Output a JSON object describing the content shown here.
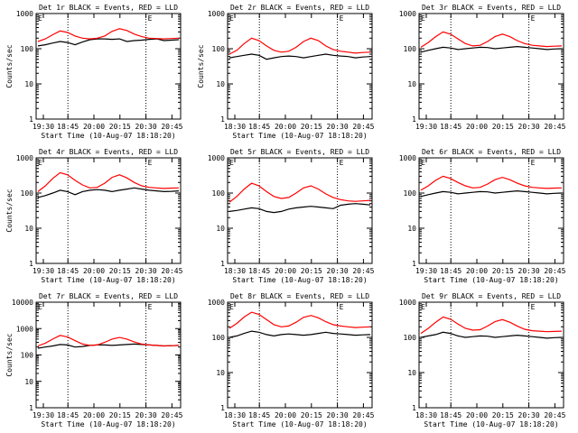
{
  "chart_data": [
    {
      "type": "line",
      "title": "Det 1r BLACK = Events, RED = LLD",
      "xlabel": "Start Time (10-Aug-07 18:18:20)",
      "ylabel": "Counts/sec",
      "yscale": "log",
      "ylim": [
        1,
        1000
      ],
      "x_ticks": [
        "19:30",
        "18:45",
        "20:00",
        "20:15",
        "20:30",
        "20:45"
      ],
      "y_ticks": [
        "1",
        "10",
        "100",
        "1000"
      ],
      "marker_label": "E",
      "series": [
        {
          "name": "Events",
          "color": "#000000",
          "values": [
            120,
            130,
            145,
            160,
            150,
            130,
            155,
            180,
            190,
            190,
            185,
            190,
            160,
            170,
            175,
            185,
            190,
            170,
            175,
            180
          ]
        },
        {
          "name": "LLD",
          "color": "#ff0000",
          "values": [
            160,
            190,
            250,
            320,
            290,
            230,
            200,
            190,
            200,
            230,
            310,
            370,
            330,
            260,
            220,
            200,
            195,
            190,
            195,
            200
          ]
        }
      ]
    },
    {
      "type": "line",
      "title": "Det 2r BLACK = Events, RED = LLD",
      "xlabel": "Start Time (10-Aug-07 18:18:20)",
      "ylabel": "Counts/sec",
      "yscale": "log",
      "ylim": [
        1,
        1000
      ],
      "x_ticks": [
        "18:30",
        "18:45",
        "20:00",
        "20:15",
        "20:30",
        "20:45"
      ],
      "y_ticks": [
        "1",
        "10",
        "100",
        "1000"
      ],
      "marker_label": "E",
      "series": [
        {
          "name": "Events",
          "color": "#000000",
          "values": [
            55,
            60,
            65,
            70,
            65,
            50,
            55,
            60,
            62,
            60,
            55,
            60,
            65,
            70,
            65,
            62,
            60,
            55,
            58,
            60
          ]
        },
        {
          "name": "LLD",
          "color": "#ff0000",
          "values": [
            70,
            90,
            140,
            200,
            170,
            120,
            90,
            80,
            85,
            110,
            160,
            200,
            170,
            120,
            95,
            85,
            80,
            75,
            78,
            80
          ]
        }
      ]
    },
    {
      "type": "line",
      "title": "Det 3r BLACK = Events, RED = LLD",
      "xlabel": "",
      "ylabel": "",
      "yscale": "log",
      "ylim": [
        1,
        1000
      ],
      "x_ticks": [
        "19:30",
        "18:45",
        "20:00",
        "20:15",
        "20:30",
        "20:45"
      ],
      "y_ticks": [
        "1",
        "10",
        "100",
        "1000"
      ],
      "marker_label": "E",
      "series": [
        {
          "name": "Events",
          "color": "#000000",
          "values": [
            80,
            90,
            100,
            110,
            105,
            95,
            100,
            105,
            110,
            108,
            100,
            105,
            110,
            115,
            110,
            105,
            100,
            95,
            98,
            100
          ]
        },
        {
          "name": "LLD",
          "color": "#ff0000",
          "values": [
            110,
            150,
            220,
            300,
            260,
            190,
            140,
            120,
            125,
            160,
            220,
            260,
            220,
            170,
            140,
            125,
            120,
            115,
            118,
            120
          ]
        }
      ]
    },
    {
      "type": "line",
      "title": "Det 4r BLACK = Events, RED = LLD",
      "xlabel": "Start Time (10-Aug-07 18:18:20)",
      "ylabel": "Counts/sec",
      "yscale": "log",
      "ylim": [
        1,
        1000
      ],
      "x_ticks": [
        "19:30",
        "18:45",
        "20:00",
        "20:15",
        "20:30",
        "20:45"
      ],
      "y_ticks": [
        "1",
        "10",
        "100",
        "1000"
      ],
      "marker_label": "E",
      "series": [
        {
          "name": "Events",
          "color": "#000000",
          "values": [
            75,
            85,
            100,
            120,
            110,
            90,
            110,
            120,
            125,
            120,
            110,
            120,
            130,
            140,
            130,
            120,
            115,
            110,
            112,
            115
          ]
        },
        {
          "name": "LLD",
          "color": "#ff0000",
          "values": [
            110,
            160,
            260,
            380,
            330,
            230,
            170,
            140,
            145,
            190,
            280,
            330,
            270,
            200,
            160,
            145,
            140,
            135,
            138,
            140
          ]
        }
      ]
    },
    {
      "type": "line",
      "title": "Det 5r BLACK = Events, RED = LLD",
      "xlabel": "Start Time (10-Aug-07 18:18:20)",
      "ylabel": "",
      "yscale": "log",
      "ylim": [
        1,
        1000
      ],
      "x_ticks": [
        "18:30",
        "18:45",
        "20:00",
        "20:15",
        "20:30",
        "20:45"
      ],
      "y_ticks": [
        "1",
        "10",
        "100",
        "1000"
      ],
      "marker_label": "E",
      "series": [
        {
          "name": "Events",
          "color": "#000000",
          "values": [
            30,
            32,
            35,
            38,
            36,
            30,
            28,
            30,
            35,
            38,
            40,
            42,
            40,
            38,
            36,
            45,
            48,
            50,
            48,
            46
          ]
        },
        {
          "name": "LLD",
          "color": "#ff0000",
          "values": [
            55,
            80,
            130,
            190,
            160,
            110,
            80,
            70,
            75,
            100,
            140,
            160,
            130,
            95,
            75,
            65,
            60,
            58,
            60,
            62
          ]
        }
      ]
    },
    {
      "type": "line",
      "title": "Det 6r BLACK = Events, RED = LLD",
      "xlabel": "Start Time (10-Aug-07 18:18:20)",
      "ylabel": "",
      "yscale": "log",
      "ylim": [
        1,
        1000
      ],
      "x_ticks": [
        "19:30",
        "18:45",
        "20:00",
        "20:15",
        "20:30",
        "20:45"
      ],
      "y_ticks": [
        "1",
        "10",
        "100",
        "1000"
      ],
      "marker_label": "E",
      "series": [
        {
          "name": "Events",
          "color": "#000000",
          "values": [
            80,
            90,
            100,
            110,
            105,
            95,
            100,
            105,
            110,
            108,
            100,
            105,
            110,
            115,
            110,
            105,
            100,
            95,
            98,
            100
          ]
        },
        {
          "name": "LLD",
          "color": "#ff0000",
          "values": [
            120,
            160,
            230,
            300,
            260,
            200,
            160,
            140,
            145,
            180,
            240,
            280,
            240,
            190,
            160,
            145,
            140,
            135,
            138,
            140
          ]
        }
      ]
    },
    {
      "type": "line",
      "title": "Det 7r BLACK = Events, RED = LLD",
      "xlabel": "Start Time (10-Aug-07 18:18:20)",
      "ylabel": "Counts/sec",
      "yscale": "log",
      "ylim": [
        1,
        10000
      ],
      "x_ticks": [
        "19:30",
        "18:45",
        "20:00",
        "20:15",
        "20:30",
        "20:45"
      ],
      "y_ticks": [
        "1",
        "10",
        "100",
        "1000",
        "10000"
      ],
      "marker_label": "E",
      "series": [
        {
          "name": "Events",
          "color": "#000000",
          "values": [
            180,
            200,
            220,
            250,
            240,
            200,
            210,
            230,
            240,
            240,
            230,
            240,
            250,
            260,
            250,
            240,
            230,
            220,
            225,
            230
          ]
        },
        {
          "name": "LLD",
          "color": "#ff0000",
          "values": [
            220,
            280,
            400,
            550,
            480,
            350,
            260,
            230,
            240,
            300,
            400,
            460,
            400,
            310,
            260,
            240,
            230,
            220,
            225,
            230
          ]
        }
      ]
    },
    {
      "type": "line",
      "title": "Det 8r BLACK = Events, RED = LLD",
      "xlabel": "Start Time (10-Aug-07 18:18:20)",
      "ylabel": "",
      "yscale": "log",
      "ylim": [
        1,
        1000
      ],
      "x_ticks": [
        "18:30",
        "18:45",
        "20:00",
        "20:15",
        "20:30",
        "20:45"
      ],
      "y_ticks": [
        "1",
        "10",
        "100",
        "1000"
      ],
      "marker_label": "E",
      "series": [
        {
          "name": "Events",
          "color": "#000000",
          "values": [
            100,
            110,
            130,
            150,
            140,
            120,
            110,
            120,
            125,
            120,
            115,
            120,
            130,
            140,
            130,
            125,
            120,
            115,
            118,
            120
          ]
        },
        {
          "name": "LLD",
          "color": "#ff0000",
          "values": [
            180,
            250,
            380,
            520,
            450,
            320,
            230,
            200,
            210,
            270,
            370,
            420,
            360,
            280,
            230,
            210,
            200,
            190,
            195,
            200
          ]
        }
      ]
    },
    {
      "type": "line",
      "title": "Det 9r BLACK = Events, RED = LLD",
      "xlabel": "Start Time (10-Aug-07 18:18:20)",
      "ylabel": "",
      "yscale": "log",
      "ylim": [
        1,
        1000
      ],
      "x_ticks": [
        "18:30",
        "18:45",
        "20:00",
        "20:15",
        "20:30",
        "20:45"
      ],
      "y_ticks": [
        "1",
        "10",
        "100",
        "1000"
      ],
      "marker_label": "E",
      "series": [
        {
          "name": "Events",
          "color": "#000000",
          "values": [
            100,
            110,
            120,
            140,
            130,
            110,
            100,
            105,
            110,
            108,
            100,
            105,
            110,
            115,
            110,
            105,
            100,
            95,
            98,
            100
          ]
        },
        {
          "name": "LLD",
          "color": "#ff0000",
          "values": [
            130,
            180,
            270,
            380,
            330,
            240,
            180,
            160,
            165,
            210,
            280,
            320,
            270,
            210,
            170,
            155,
            150,
            145,
            148,
            150
          ]
        }
      ]
    }
  ]
}
